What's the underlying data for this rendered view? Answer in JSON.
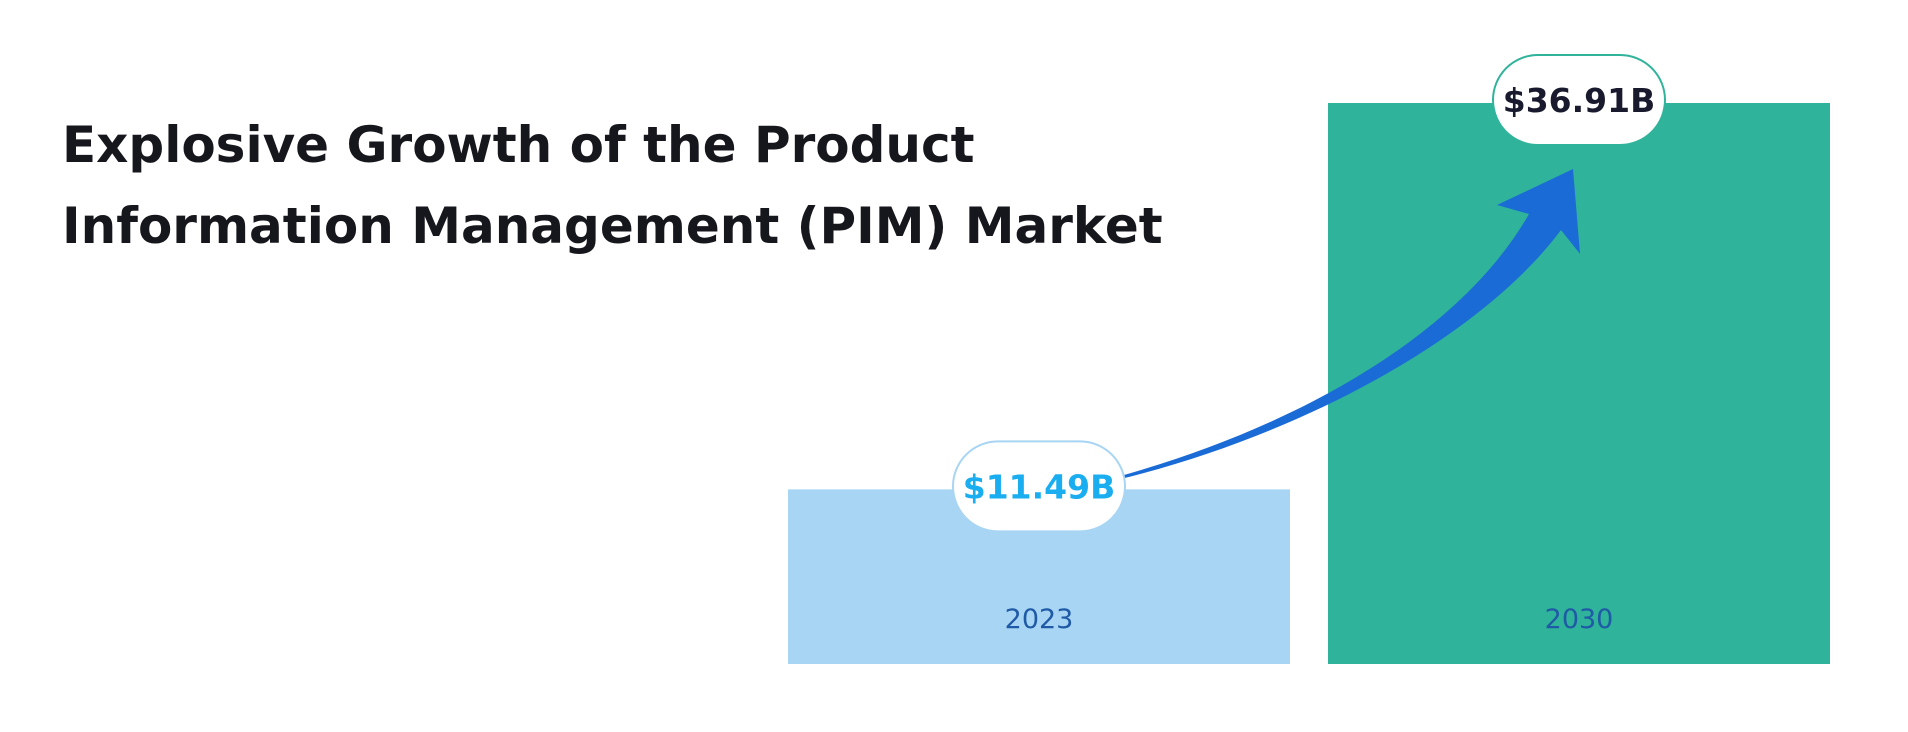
{
  "chart_data": {
    "type": "bar",
    "title": [
      "Explosive Growth of the Product",
      "Information Management (PIM) Market"
    ],
    "categories": [
      "2023",
      "2030"
    ],
    "values": [
      11.49,
      36.91
    ],
    "value_labels": [
      "$11.49B",
      "$36.91B"
    ],
    "colors": [
      "#a8d5f3",
      "#30b39b"
    ]
  }
}
